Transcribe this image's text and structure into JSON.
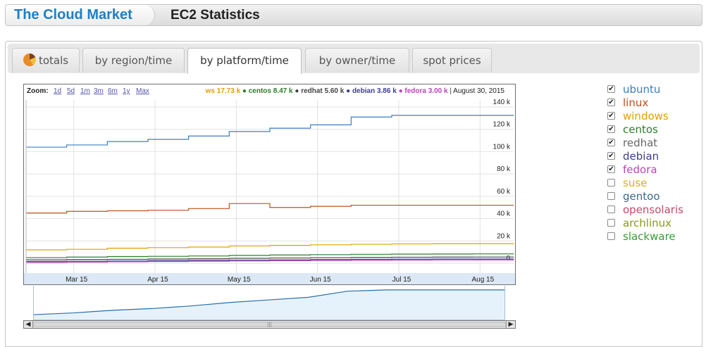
{
  "header": {
    "brand": "The Cloud Market",
    "title": "EC2 Statistics"
  },
  "tabs": [
    {
      "label": "totals",
      "icon": "pie-chart-icon",
      "active": false
    },
    {
      "label": "by region/time",
      "active": false
    },
    {
      "label": "by platform/time",
      "active": true
    },
    {
      "label": "by owner/time",
      "active": false
    },
    {
      "label": "spot prices",
      "active": false
    }
  ],
  "chart": {
    "zoom_label": "Zoom:",
    "zoom_options": [
      "1d",
      "5d",
      "1m",
      "3m",
      "6m",
      "1y",
      "Max"
    ],
    "legend_date": "August 30, 2015",
    "legend_values": [
      {
        "name": "ws",
        "value": "17.73 k",
        "color": "#e2a000"
      },
      {
        "name": "centos",
        "value": "8.47 k",
        "color": "#2a7d2a"
      },
      {
        "name": "redhat",
        "value": "5.60 k",
        "color": "#444444"
      },
      {
        "name": "debian",
        "value": "3.86 k",
        "color": "#3c3c96"
      },
      {
        "name": "fedora",
        "value": "3.00 k",
        "color": "#bb44bb"
      }
    ]
  },
  "chart_data": {
    "type": "line",
    "x": [
      "Mar 1",
      "Mar 15",
      "Apr 1",
      "Apr 15",
      "May 1",
      "May 15",
      "Jun 1",
      "Jun 15",
      "Jul 1",
      "Jul 15",
      "Aug 1",
      "Aug 15",
      "Aug 30"
    ],
    "x_tick_labels": [
      "Mar 15",
      "Apr 15",
      "May 15",
      "Jun 15",
      "Jul 15",
      "Aug 15"
    ],
    "y_tick_labels": [
      "0",
      "20 k",
      "40 k",
      "60 k",
      "80 k",
      "100 k",
      "120 k",
      "140 k"
    ],
    "ylim": [
      0,
      140000
    ],
    "grid": true,
    "series": [
      {
        "name": "ubuntu",
        "color": "#3a7fc0",
        "values": [
          104000,
          106000,
          109000,
          111000,
          114000,
          118000,
          121000,
          124000,
          131000,
          132500,
          132500,
          132500,
          132500
        ]
      },
      {
        "name": "linux",
        "color": "#c0501f",
        "values": [
          45000,
          46500,
          47000,
          47500,
          49000,
          53500,
          50000,
          51000,
          52000,
          52000,
          52000,
          52000,
          52000
        ]
      },
      {
        "name": "windows",
        "color": "#e2a000",
        "values": [
          12000,
          12500,
          13500,
          14000,
          14500,
          15500,
          16000,
          16500,
          17000,
          17300,
          17500,
          17600,
          17730
        ]
      },
      {
        "name": "centos",
        "color": "#2a7d2a",
        "values": [
          5000,
          5500,
          6000,
          6200,
          6500,
          7000,
          7400,
          7700,
          8000,
          8200,
          8300,
          8400,
          8470
        ]
      },
      {
        "name": "redhat",
        "color": "#444444",
        "values": [
          3000,
          3300,
          3500,
          3800,
          4000,
          4400,
          4700,
          5000,
          5200,
          5400,
          5500,
          5550,
          5600
        ]
      },
      {
        "name": "debian",
        "color": "#3c3c96",
        "values": [
          1500,
          1700,
          2000,
          2300,
          2500,
          2800,
          3000,
          3300,
          3500,
          3700,
          3800,
          3830,
          3860
        ]
      },
      {
        "name": "fedora",
        "color": "#bb44bb",
        "values": [
          800,
          1000,
          1300,
          1600,
          1800,
          2000,
          2300,
          2500,
          2700,
          2850,
          2950,
          2980,
          3000
        ]
      }
    ]
  },
  "legend": [
    {
      "label": "ubuntu",
      "color": "#3a7fc0",
      "checked": true
    },
    {
      "label": "linux",
      "color": "#c0501f",
      "checked": true
    },
    {
      "label": "windows",
      "color": "#e2a000",
      "checked": true
    },
    {
      "label": "centos",
      "color": "#2a7d2a",
      "checked": true
    },
    {
      "label": "redhat",
      "color": "#666666",
      "checked": true
    },
    {
      "label": "debian",
      "color": "#3c3c96",
      "checked": true
    },
    {
      "label": "fedora",
      "color": "#bb44bb",
      "checked": true
    },
    {
      "label": "suse",
      "color": "#d8b21a",
      "checked": false
    },
    {
      "label": "gentoo",
      "color": "#3c6a8a",
      "checked": false
    },
    {
      "label": "opensolaris",
      "color": "#c04a6a",
      "checked": false
    },
    {
      "label": "archlinux",
      "color": "#8a9a1a",
      "checked": false
    },
    {
      "label": "slackware",
      "color": "#3a9a3a",
      "checked": false
    }
  ]
}
